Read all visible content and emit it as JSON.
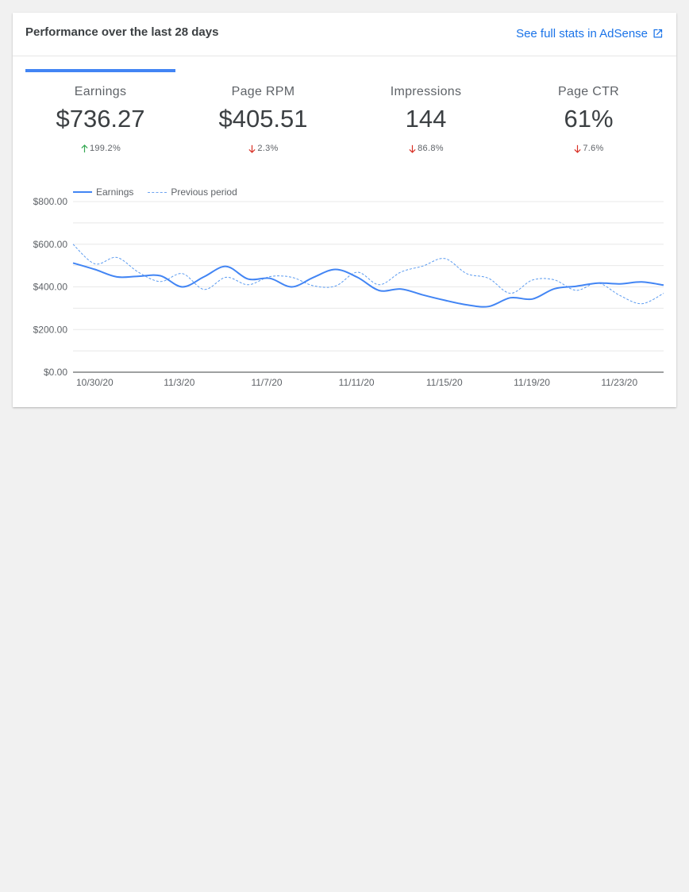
{
  "header": {
    "title": "Performance over the last 28 days",
    "full_stats_label": "See full stats in AdSense",
    "external_link_icon": "external-link-icon"
  },
  "metrics": [
    {
      "label": "Earnings",
      "value": "$736.27",
      "change": "199.2%",
      "direction": "up",
      "selected": true
    },
    {
      "label": "Page RPM",
      "value": "$405.51",
      "change": "2.3%",
      "direction": "down",
      "selected": false
    },
    {
      "label": "Impressions",
      "value": "144",
      "change": "86.8%",
      "direction": "down",
      "selected": false
    },
    {
      "label": "Page CTR",
      "value": "61%",
      "change": "7.6%",
      "direction": "down",
      "selected": false
    }
  ],
  "legend": {
    "current": "Earnings",
    "previous": "Previous period"
  },
  "colors": {
    "accent": "#4285f4",
    "link": "#1a73e8",
    "up": "#34a853",
    "down": "#d93025"
  },
  "chart_data": {
    "type": "line",
    "x_ticks": [
      "10/30/20",
      "11/3/20",
      "11/7/20",
      "11/11/20",
      "11/15/20",
      "11/19/20",
      "11/23/20"
    ],
    "y_ticks": [
      "$0.00",
      "$200.00",
      "$400.00",
      "$600.00",
      "$800.00"
    ],
    "ylim": [
      0,
      800
    ],
    "grid": true,
    "legend_position": "top-left",
    "series": [
      {
        "name": "Earnings",
        "style": "solid",
        "values": [
          512,
          482,
          447,
          450,
          452,
          400,
          448,
          496,
          437,
          440,
          400,
          445,
          482,
          445,
          383,
          390,
          362,
          337,
          316,
          308,
          349,
          343,
          391,
          403,
          418,
          414,
          423,
          408
        ]
      },
      {
        "name": "Previous period",
        "style": "dashed",
        "values": [
          600,
          508,
          538,
          468,
          425,
          462,
          388,
          445,
          410,
          448,
          445,
          405,
          404,
          469,
          410,
          470,
          498,
          533,
          462,
          440,
          370,
          432,
          433,
          384,
          418,
          360,
          321,
          370
        ]
      }
    ]
  }
}
